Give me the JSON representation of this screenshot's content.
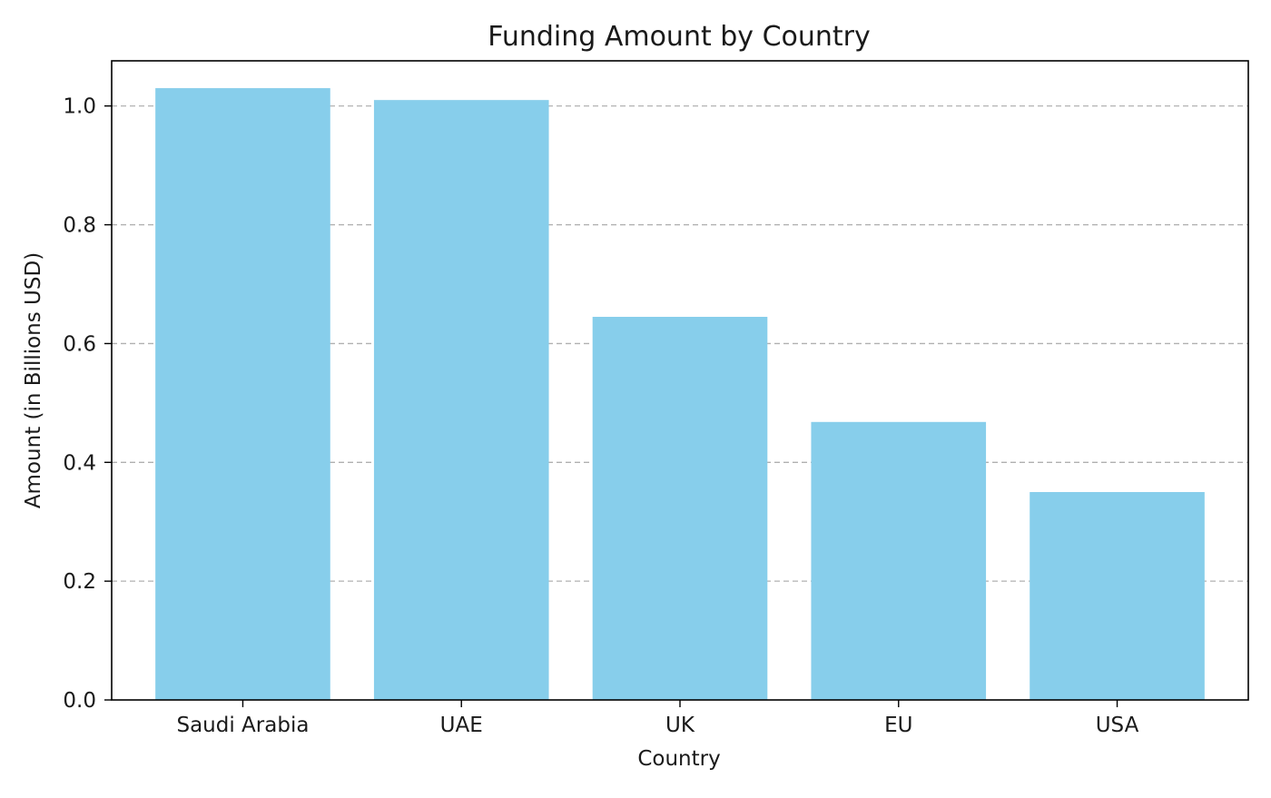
{
  "chart_data": {
    "type": "bar",
    "title": "Funding Amount by Country",
    "xlabel": "Country",
    "ylabel": "Amount (in Billions USD)",
    "categories": [
      "Saudi Arabia",
      "UAE",
      "UK",
      "EU",
      "USA"
    ],
    "values": [
      1.03,
      1.01,
      0.645,
      0.468,
      0.35
    ],
    "ylim": [
      0,
      1.076
    ],
    "yticks": [
      0.0,
      0.2,
      0.4,
      0.6,
      0.8,
      1.0
    ],
    "ytick_labels": [
      "0.0",
      "0.2",
      "0.4",
      "0.6",
      "0.8",
      "1.0"
    ],
    "grid": "y-dashed",
    "legend": "none",
    "bar_color": "#87CEEB"
  }
}
